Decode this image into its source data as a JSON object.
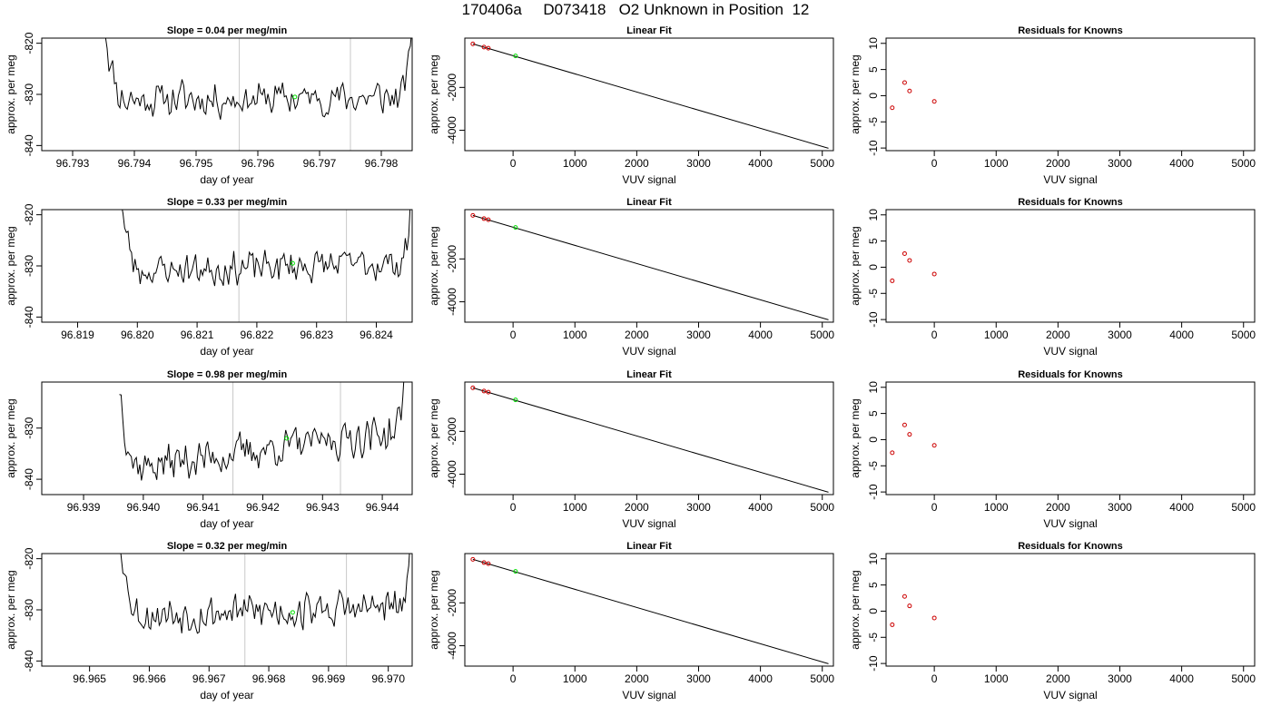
{
  "page": {
    "title": "170406a     D073418   O2 Unknown in Position  12"
  },
  "chart_data": [
    {
      "type": "line",
      "row": 1,
      "kind": "timeseries",
      "title": "Slope =  0.04  per meg/min",
      "xlabel": "day of year",
      "ylabel": "approx. per meg",
      "xlim": [
        96.7925,
        96.7985
      ],
      "ylim": [
        -841,
        -819
      ],
      "xticks": [
        96.793,
        96.794,
        96.795,
        96.796,
        96.797,
        96.798
      ],
      "xtick_labels": [
        "96.793",
        "96.794",
        "96.795",
        "96.796",
        "96.797",
        "96.798"
      ],
      "yticks": [
        -840,
        -830,
        -820
      ],
      "ytick_labels": [
        "-840",
        "-830",
        "-820"
      ],
      "vlines": [
        96.7957,
        96.7975
      ],
      "green_point": {
        "x": 96.7966,
        "y": -830.5
      },
      "series": [
        {
          "x_start": 96.7935,
          "x_end": 96.7985,
          "n": 170,
          "baseline": -831,
          "drift": 0.4,
          "noise": 1.7,
          "seed": 11
        }
      ]
    },
    {
      "type": "line",
      "row": 1,
      "kind": "fit",
      "title": "Linear Fit",
      "xlabel": "VUV signal",
      "ylabel": "approx. per meg",
      "xlim": [
        -780,
        5180
      ],
      "ylim": [
        -4950,
        300
      ],
      "xticks": [
        0,
        1000,
        2000,
        3000,
        4000,
        5000
      ],
      "xtick_labels": [
        "0",
        "1000",
        "2000",
        "3000",
        "4000",
        "5000"
      ],
      "yticks": [
        -4000,
        -2000
      ],
      "ytick_labels": [
        "-4000",
        "-2000"
      ],
      "fit_line": {
        "x": [
          -650,
          5100
        ],
        "y": [
          30,
          -4840
        ]
      },
      "known_points": [
        {
          "x": -650,
          "y": 30
        },
        {
          "x": -470,
          "y": -120
        },
        {
          "x": -400,
          "y": -170
        }
      ],
      "unknown_point": {
        "x": 40,
        "y": -530
      }
    },
    {
      "type": "scatter",
      "row": 1,
      "kind": "residuals",
      "title": "Residuals for Knowns",
      "xlabel": "VUV signal",
      "ylabel": "approx. per meg",
      "xlim": [
        -780,
        5180
      ],
      "ylim": [
        -10.5,
        11
      ],
      "xticks": [
        0,
        1000,
        2000,
        3000,
        4000,
        5000
      ],
      "xtick_labels": [
        "0",
        "1000",
        "2000",
        "3000",
        "4000",
        "5000"
      ],
      "yticks": [
        -10,
        -5,
        0,
        5,
        10
      ],
      "ytick_labels": [
        "-10",
        "-5",
        "0",
        "5",
        "10"
      ],
      "points": [
        {
          "x": -680,
          "y": -2.3
        },
        {
          "x": -480,
          "y": 2.5
        },
        {
          "x": -400,
          "y": 0.9
        },
        {
          "x": 0,
          "y": -1.1
        }
      ]
    },
    {
      "type": "line",
      "row": 2,
      "kind": "timeseries",
      "title": "Slope =  0.33  per meg/min",
      "xlabel": "day of year",
      "ylabel": "approx. per meg",
      "xlim": [
        96.8184,
        96.8246
      ],
      "ylim": [
        -841,
        -819
      ],
      "xticks": [
        96.819,
        96.82,
        96.821,
        96.822,
        96.823,
        96.824
      ],
      "xtick_labels": [
        "96.819",
        "96.820",
        "96.821",
        "96.822",
        "96.823",
        "96.824"
      ],
      "yticks": [
        -840,
        -830,
        -820
      ],
      "ytick_labels": [
        "-840",
        "-830",
        "-820"
      ],
      "vlines": [
        96.8217,
        96.8235
      ],
      "green_point": {
        "x": 96.8226,
        "y": -829.5
      },
      "series": [
        {
          "x_start": 96.8197,
          "x_end": 96.8246,
          "n": 170,
          "baseline": -831,
          "drift": 1.6,
          "noise": 1.6,
          "seed": 23
        }
      ]
    },
    {
      "type": "line",
      "row": 2,
      "kind": "fit",
      "title": "Linear Fit",
      "xlabel": "VUV signal",
      "ylabel": "approx. per meg",
      "xlim": [
        -780,
        5180
      ],
      "ylim": [
        -4950,
        300
      ],
      "xticks": [
        0,
        1000,
        2000,
        3000,
        4000,
        5000
      ],
      "xtick_labels": [
        "0",
        "1000",
        "2000",
        "3000",
        "4000",
        "5000"
      ],
      "yticks": [
        -4000,
        -2000
      ],
      "ytick_labels": [
        "-4000",
        "-2000"
      ],
      "fit_line": {
        "x": [
          -650,
          5100
        ],
        "y": [
          30,
          -4840
        ]
      },
      "known_points": [
        {
          "x": -650,
          "y": 30
        },
        {
          "x": -470,
          "y": -120
        },
        {
          "x": -400,
          "y": -170
        }
      ],
      "unknown_point": {
        "x": 40,
        "y": -530
      }
    },
    {
      "type": "scatter",
      "row": 2,
      "kind": "residuals",
      "title": "Residuals for Knowns",
      "xlabel": "VUV signal",
      "ylabel": "approx. per meg",
      "xlim": [
        -780,
        5180
      ],
      "ylim": [
        -10.5,
        11
      ],
      "xticks": [
        0,
        1000,
        2000,
        3000,
        4000,
        5000
      ],
      "xtick_labels": [
        "0",
        "1000",
        "2000",
        "3000",
        "4000",
        "5000"
      ],
      "yticks": [
        -10,
        -5,
        0,
        5,
        10
      ],
      "ytick_labels": [
        "-10",
        "-5",
        "0",
        "5",
        "10"
      ],
      "points": [
        {
          "x": -680,
          "y": -2.6
        },
        {
          "x": -480,
          "y": 2.6
        },
        {
          "x": -400,
          "y": 1.3
        },
        {
          "x": 0,
          "y": -1.3
        }
      ]
    },
    {
      "type": "line",
      "row": 3,
      "kind": "timeseries",
      "title": "Slope =  0.98  per meg/min",
      "xlabel": "day of year",
      "ylabel": "approx. per meg",
      "xlim": [
        96.9383,
        96.9445
      ],
      "ylim": [
        -843,
        -821
      ],
      "xticks": [
        96.939,
        96.94,
        96.941,
        96.942,
        96.943,
        96.944
      ],
      "xtick_labels": [
        "96.939",
        "96.940",
        "96.941",
        "96.942",
        "96.943",
        "96.944"
      ],
      "yticks": [
        -840,
        -830
      ],
      "ytick_labels": [
        "-840",
        "-830"
      ],
      "vlines": [
        96.9415,
        96.9433
      ],
      "green_point": {
        "x": 96.9424,
        "y": -832
      },
      "series": [
        {
          "x_start": 96.9396,
          "x_end": 96.9444,
          "n": 170,
          "baseline": -838,
          "drift": 7.5,
          "noise": 1.8,
          "seed": 37
        }
      ]
    },
    {
      "type": "line",
      "row": 3,
      "kind": "fit",
      "title": "Linear Fit",
      "xlabel": "VUV signal",
      "ylabel": "approx. per meg",
      "xlim": [
        -780,
        5180
      ],
      "ylim": [
        -4950,
        300
      ],
      "xticks": [
        0,
        1000,
        2000,
        3000,
        4000,
        5000
      ],
      "xtick_labels": [
        "0",
        "1000",
        "2000",
        "3000",
        "4000",
        "5000"
      ],
      "yticks": [
        -4000,
        -2000
      ],
      "ytick_labels": [
        "-4000",
        "-2000"
      ],
      "fit_line": {
        "x": [
          -650,
          5100
        ],
        "y": [
          30,
          -4840
        ]
      },
      "known_points": [
        {
          "x": -650,
          "y": 30
        },
        {
          "x": -470,
          "y": -120
        },
        {
          "x": -400,
          "y": -170
        }
      ],
      "unknown_point": {
        "x": 40,
        "y": -530
      }
    },
    {
      "type": "scatter",
      "row": 3,
      "kind": "residuals",
      "title": "Residuals for Knowns",
      "xlabel": "VUV signal",
      "ylabel": "approx. per meg",
      "xlim": [
        -780,
        5180
      ],
      "ylim": [
        -10.5,
        11
      ],
      "xticks": [
        0,
        1000,
        2000,
        3000,
        4000,
        5000
      ],
      "xtick_labels": [
        "0",
        "1000",
        "2000",
        "3000",
        "4000",
        "5000"
      ],
      "yticks": [
        -10,
        -5,
        0,
        5,
        10
      ],
      "ytick_labels": [
        "-10",
        "-5",
        "0",
        "5",
        "10"
      ],
      "points": [
        {
          "x": -680,
          "y": -2.5
        },
        {
          "x": -480,
          "y": 2.8
        },
        {
          "x": -400,
          "y": 1.0
        },
        {
          "x": 0,
          "y": -1.1
        }
      ]
    },
    {
      "type": "line",
      "row": 4,
      "kind": "timeseries",
      "title": "Slope =  0.32  per meg/min",
      "xlabel": "day of year",
      "ylabel": "approx. per meg",
      "xlim": [
        96.9642,
        96.9704
      ],
      "ylim": [
        -841,
        -819
      ],
      "xticks": [
        96.965,
        96.966,
        96.967,
        96.968,
        96.969,
        96.97
      ],
      "xtick_labels": [
        "96.965",
        "96.966",
        "96.967",
        "96.968",
        "96.969",
        "96.970"
      ],
      "yticks": [
        -840,
        -830,
        -820
      ],
      "ytick_labels": [
        "-840",
        "-830",
        "-820"
      ],
      "vlines": [
        96.9676,
        96.9693
      ],
      "green_point": {
        "x": 96.9684,
        "y": -830.5
      },
      "series": [
        {
          "x_start": 96.9655,
          "x_end": 96.9704,
          "n": 170,
          "baseline": -831,
          "drift": 1.5,
          "noise": 1.8,
          "seed": 53
        }
      ]
    },
    {
      "type": "line",
      "row": 4,
      "kind": "fit",
      "title": "Linear Fit",
      "xlabel": "VUV signal",
      "ylabel": "approx. per meg",
      "xlim": [
        -780,
        5180
      ],
      "ylim": [
        -4950,
        300
      ],
      "xticks": [
        0,
        1000,
        2000,
        3000,
        4000,
        5000
      ],
      "xtick_labels": [
        "0",
        "1000",
        "2000",
        "3000",
        "4000",
        "5000"
      ],
      "yticks": [
        -4000,
        -2000
      ],
      "ytick_labels": [
        "-4000",
        "-2000"
      ],
      "fit_line": {
        "x": [
          -650,
          5100
        ],
        "y": [
          30,
          -4840
        ]
      },
      "known_points": [
        {
          "x": -650,
          "y": 30
        },
        {
          "x": -470,
          "y": -120
        },
        {
          "x": -400,
          "y": -170
        }
      ],
      "unknown_point": {
        "x": 40,
        "y": -530
      }
    },
    {
      "type": "scatter",
      "row": 4,
      "kind": "residuals",
      "title": "Residuals for Knowns",
      "xlabel": "VUV signal",
      "ylabel": "approx. per meg",
      "xlim": [
        -780,
        5180
      ],
      "ylim": [
        -10.5,
        11
      ],
      "xticks": [
        0,
        1000,
        2000,
        3000,
        4000,
        5000
      ],
      "xtick_labels": [
        "0",
        "1000",
        "2000",
        "3000",
        "4000",
        "5000"
      ],
      "yticks": [
        -10,
        -5,
        0,
        5,
        10
      ],
      "ytick_labels": [
        "-10",
        "-5",
        "0",
        "5",
        "10"
      ],
      "points": [
        {
          "x": -680,
          "y": -2.6
        },
        {
          "x": -480,
          "y": 2.8
        },
        {
          "x": -400,
          "y": 1.0
        },
        {
          "x": 0,
          "y": -1.3
        }
      ]
    }
  ],
  "colors": {
    "line": "#000000",
    "vline": "#c8c8c8",
    "unknown_point": "#00dd00",
    "known_point": "#cc0000"
  }
}
